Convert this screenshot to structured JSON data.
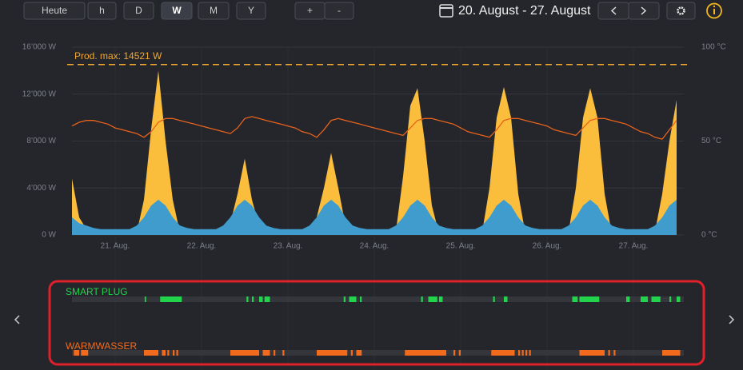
{
  "toolbar": {
    "buttons": [
      "Heute",
      "h",
      "D",
      "W",
      "M",
      "Y",
      "+",
      "-"
    ],
    "active": "W",
    "date_range": "20. August - 27. August"
  },
  "chart_data": {
    "type": "area",
    "annotation": {
      "text": "Prod. max: 14521 W",
      "value": 14521,
      "color": "#f0a830"
    },
    "x": [
      0,
      2,
      4,
      6,
      8,
      10,
      12,
      14,
      16,
      18,
      20,
      22,
      24,
      26,
      28,
      30,
      32,
      34,
      36,
      38,
      40,
      42,
      44,
      46,
      48,
      50,
      52,
      54,
      56,
      58,
      60,
      62,
      64,
      66,
      68,
      70,
      72,
      74,
      76,
      78,
      80,
      82,
      84,
      86,
      88,
      90,
      92,
      94,
      96,
      98,
      100,
      102,
      104,
      106,
      108,
      110,
      112,
      114,
      116,
      118,
      120,
      122,
      124,
      126,
      128,
      130,
      132,
      134,
      136,
      138,
      140,
      142,
      144,
      146,
      148,
      150,
      152,
      154,
      156,
      158,
      160,
      162,
      164,
      166,
      168
    ],
    "xlim": [
      0,
      170
    ],
    "xticks": [
      {
        "value": 12,
        "label": "21. Aug."
      },
      {
        "value": 36,
        "label": "22. Aug."
      },
      {
        "value": 60,
        "label": "23. Aug."
      },
      {
        "value": 84,
        "label": "24. Aug."
      },
      {
        "value": 108,
        "label": "25. Aug."
      },
      {
        "value": 132,
        "label": "26. Aug."
      },
      {
        "value": 156,
        "label": "27. Aug."
      }
    ],
    "ylim": [
      0,
      16000
    ],
    "yticks": [
      {
        "value": 0,
        "label": "0 W"
      },
      {
        "value": 4000,
        "label": "4’000 W"
      },
      {
        "value": 8000,
        "label": "8’000 W"
      },
      {
        "value": 12000,
        "label": "12’000 W"
      },
      {
        "value": 16000,
        "label": "16’000 W"
      }
    ],
    "y2lim": [
      0,
      100
    ],
    "y2ticks": [
      {
        "value": 0,
        "label": "0 °C"
      },
      {
        "value": 50,
        "label": "50 °C"
      },
      {
        "value": 100,
        "label": "100 °C"
      }
    ],
    "grid": true,
    "series": [
      {
        "type": "area",
        "color": "#fbbd3c",
        "values": [
          4800,
          1500,
          500,
          0,
          0,
          0,
          0,
          0,
          0,
          200,
          3000,
          9000,
          14000,
          8000,
          3000,
          200,
          0,
          0,
          0,
          0,
          0,
          100,
          1000,
          3500,
          6500,
          3000,
          800,
          0,
          0,
          0,
          0,
          0,
          0,
          100,
          1500,
          4000,
          7000,
          4000,
          800,
          0,
          0,
          0,
          0,
          0,
          0,
          300,
          5000,
          11000,
          12500,
          8000,
          2500,
          100,
          0,
          0,
          0,
          0,
          0,
          300,
          4000,
          10000,
          12600,
          10000,
          3500,
          100,
          0,
          0,
          0,
          0,
          0,
          300,
          4000,
          10000,
          12500,
          10000,
          3500,
          100,
          0,
          0,
          0,
          0,
          0,
          300,
          3500,
          8000,
          11500
        ]
      },
      {
        "type": "area",
        "color": "#3f9ccc",
        "values": [
          1500,
          1000,
          800,
          600,
          500,
          500,
          500,
          500,
          500,
          800,
          1500,
          2500,
          3000,
          2500,
          1500,
          800,
          600,
          500,
          500,
          500,
          500,
          800,
          1500,
          2500,
          3000,
          2500,
          1500,
          800,
          600,
          500,
          500,
          500,
          500,
          800,
          1500,
          2500,
          3000,
          2500,
          1500,
          800,
          600,
          500,
          500,
          500,
          500,
          800,
          1500,
          2500,
          3000,
          2500,
          1500,
          800,
          600,
          500,
          500,
          500,
          500,
          800,
          1500,
          2500,
          3000,
          2500,
          1500,
          800,
          600,
          500,
          500,
          500,
          500,
          800,
          1500,
          2500,
          3000,
          2500,
          1500,
          800,
          600,
          500,
          500,
          500,
          500,
          800,
          1500,
          2500,
          3000
        ]
      },
      {
        "type": "line",
        "axis": "y2",
        "color": "#e8621c",
        "values": [
          58,
          60,
          61,
          61,
          60,
          59,
          57,
          56,
          55,
          54,
          52,
          55,
          60,
          62,
          62,
          61,
          60,
          59,
          58,
          57,
          56,
          55,
          54,
          57,
          62,
          63,
          62,
          61,
          60,
          59,
          58,
          57,
          55,
          54,
          52,
          56,
          61,
          62,
          61,
          60,
          59,
          58,
          57,
          56,
          55,
          54,
          53,
          57,
          61,
          62,
          62,
          61,
          60,
          59,
          57,
          55,
          54,
          53,
          52,
          56,
          61,
          62,
          62,
          61,
          60,
          59,
          58,
          56,
          55,
          54,
          53,
          57,
          61,
          62,
          62,
          61,
          60,
          59,
          57,
          55,
          54,
          52,
          51,
          56,
          61
        ]
      }
    ]
  },
  "timeline": {
    "rows": [
      {
        "label": "SMART PLUG",
        "color": "#22d34c",
        "intervals": [
          [
            20.2,
            20.6
          ],
          [
            24.5,
            30.5
          ],
          [
            48.5,
            49
          ],
          [
            50,
            50.5
          ],
          [
            52,
            53
          ],
          [
            53.5,
            55
          ],
          [
            75.5,
            76
          ],
          [
            77,
            79
          ],
          [
            80,
            80.5
          ],
          [
            97,
            97.5
          ],
          [
            99,
            101.5
          ],
          [
            102,
            103
          ],
          [
            117,
            117.5
          ],
          [
            120,
            121
          ],
          [
            139,
            140.5
          ],
          [
            141,
            146.5
          ],
          [
            154,
            155
          ],
          [
            158,
            160
          ],
          [
            161,
            163.5
          ],
          [
            166,
            166.5
          ],
          [
            168,
            169
          ]
        ]
      },
      {
        "label": "WARMWASSER",
        "color": "#f26b1d",
        "intervals": [
          [
            0.5,
            2
          ],
          [
            2.5,
            4.5
          ],
          [
            20,
            24
          ],
          [
            25,
            26
          ],
          [
            26.5,
            27
          ],
          [
            28,
            28.5
          ],
          [
            29,
            29.5
          ],
          [
            44,
            52
          ],
          [
            53,
            55
          ],
          [
            56,
            56.5
          ],
          [
            58.5,
            59
          ],
          [
            68,
            76.5
          ],
          [
            77.5,
            78
          ],
          [
            79,
            80.5
          ],
          [
            92.5,
            104
          ],
          [
            106,
            106.5
          ],
          [
            107.5,
            108
          ],
          [
            116.5,
            123
          ],
          [
            124,
            124.5
          ],
          [
            125,
            125.5
          ],
          [
            126,
            126.5
          ],
          [
            127,
            127.5
          ],
          [
            141,
            148
          ],
          [
            149,
            149.5
          ],
          [
            150.5,
            151
          ],
          [
            164,
            169
          ]
        ]
      }
    ]
  }
}
